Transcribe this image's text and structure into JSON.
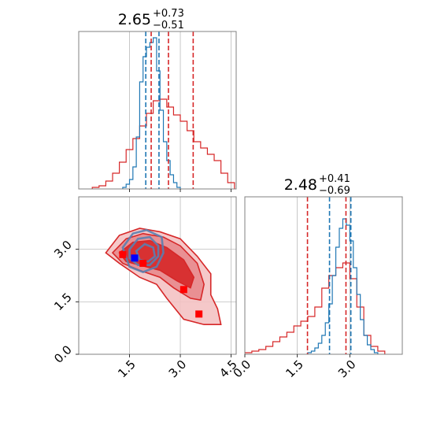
{
  "figure": {
    "type": "corner plot"
  },
  "colors": {
    "red": "#d62728",
    "red_fill": "#e8898d",
    "red_fill_light": "#f4c2c3",
    "blue": "#1f77b4",
    "blue_contour": "#5a7fb0",
    "marker_red": "#ff0000",
    "marker_blue": "#0000ff",
    "grid": "#b0b0b0",
    "axes": "#808080"
  },
  "chart_data": [
    {
      "panel": "top-left histogram",
      "type": "step-histogram",
      "title": {
        "value": "2.65",
        "plus": "+0.73",
        "minus": "−0.51"
      },
      "xlim": [
        0,
        4.65
      ],
      "x_ticks": [
        1.5,
        3.0,
        4.5
      ],
      "grid": true,
      "series": [
        {
          "color": "#d62728",
          "bin_edges": [
            0.4,
            0.6,
            0.8,
            1.0,
            1.2,
            1.4,
            1.6,
            1.8,
            2.0,
            2.2,
            2.4,
            2.6,
            2.8,
            3.0,
            3.2,
            3.4,
            3.6,
            3.8,
            4.0,
            4.2,
            4.4,
            4.6
          ],
          "counts": [
            0.01,
            0.02,
            0.05,
            0.1,
            0.17,
            0.25,
            0.32,
            0.4,
            0.48,
            0.56,
            0.57,
            0.52,
            0.47,
            0.43,
            0.37,
            0.3,
            0.26,
            0.22,
            0.18,
            0.1,
            0.04
          ],
          "quantile_lines": [
            2.14,
            2.65,
            3.38
          ]
        },
        {
          "color": "#1f77b4",
          "bin_edges": [
            1.3,
            1.4,
            1.5,
            1.6,
            1.7,
            1.8,
            1.9,
            2.0,
            2.1,
            2.2,
            2.3,
            2.4,
            2.5,
            2.6,
            2.7,
            2.8,
            2.9,
            3.0
          ],
          "counts": [
            0.01,
            0.03,
            0.06,
            0.14,
            0.33,
            0.68,
            0.84,
            0.9,
            0.93,
            0.96,
            0.75,
            0.5,
            0.3,
            0.18,
            0.09,
            0.04,
            0.01
          ],
          "quantile_lines": [
            1.98,
            2.37
          ]
        }
      ]
    },
    {
      "panel": "bottom-right histogram",
      "type": "step-histogram",
      "title": {
        "value": "2.48",
        "plus": "+0.41",
        "minus": "−0.69"
      },
      "xlim": [
        0,
        4.5
      ],
      "x_ticks": [
        0.0,
        1.5,
        3.0
      ],
      "x_tick_labels": [
        "0.0",
        "1.5",
        "3.0"
      ],
      "grid": true,
      "series": [
        {
          "color": "#d62728",
          "bin_edges": [
            0.0,
            0.2,
            0.4,
            0.6,
            0.8,
            1.0,
            1.2,
            1.4,
            1.6,
            1.8,
            2.0,
            2.2,
            2.4,
            2.6,
            2.8,
            3.0,
            3.2,
            3.4,
            3.6,
            3.8,
            4.0
          ],
          "counts": [
            0.01,
            0.02,
            0.03,
            0.05,
            0.08,
            0.11,
            0.14,
            0.18,
            0.21,
            0.24,
            0.3,
            0.42,
            0.5,
            0.55,
            0.58,
            0.48,
            0.3,
            0.12,
            0.05,
            0.02
          ],
          "quantile_lines": [
            1.79,
            2.89
          ]
        },
        {
          "color": "#1f77b4",
          "bin_edges": [
            1.8,
            1.9,
            2.0,
            2.1,
            2.2,
            2.3,
            2.4,
            2.5,
            2.6,
            2.7,
            2.8,
            2.9,
            3.0,
            3.1,
            3.2,
            3.3,
            3.4,
            3.5,
            3.6,
            3.7,
            3.8
          ],
          "counts": [
            0.01,
            0.02,
            0.04,
            0.07,
            0.12,
            0.2,
            0.32,
            0.5,
            0.68,
            0.8,
            0.86,
            0.82,
            0.72,
            0.55,
            0.38,
            0.22,
            0.12,
            0.06,
            0.03,
            0.01
          ],
          "quantile_lines": [
            2.42,
            3.03
          ]
        }
      ]
    },
    {
      "panel": "bottom-left 2D density",
      "type": "contour",
      "xlim": [
        0,
        4.65
      ],
      "ylim": [
        0,
        4.5
      ],
      "x_ticks": [
        1.5,
        3.0,
        4.5
      ],
      "x_tick_labels": [
        "1.5",
        "3.0",
        "4.5"
      ],
      "y_ticks": [
        0.0,
        1.5,
        3.0
      ],
      "y_tick_labels": [
        "0.0",
        "1.5",
        "3.0"
      ],
      "grid": true,
      "red_contours": [
        {
          "level": "outer",
          "points": [
            [
              0.8,
              2.9
            ],
            [
              1.2,
              3.4
            ],
            [
              1.8,
              3.6
            ],
            [
              2.4,
              3.5
            ],
            [
              3.0,
              3.3
            ],
            [
              3.5,
              2.8
            ],
            [
              3.9,
              2.3
            ],
            [
              3.9,
              1.7
            ],
            [
              4.1,
              1.3
            ],
            [
              4.2,
              0.85
            ],
            [
              3.7,
              0.85
            ],
            [
              3.1,
              1.0
            ],
            [
              2.6,
              1.6
            ],
            [
              2.3,
              2.0
            ],
            [
              1.8,
              2.2
            ],
            [
              1.2,
              2.6
            ]
          ],
          "fill": "#f4c2c3"
        },
        {
          "level": "middle",
          "points": [
            [
              1.0,
              2.9
            ],
            [
              1.4,
              3.3
            ],
            [
              1.9,
              3.45
            ],
            [
              2.5,
              3.35
            ],
            [
              3.0,
              3.1
            ],
            [
              3.5,
              2.6
            ],
            [
              3.7,
              2.0
            ],
            [
              3.6,
              1.55
            ],
            [
              3.3,
              1.6
            ],
            [
              2.8,
              1.9
            ],
            [
              2.4,
              2.2
            ],
            [
              1.8,
              2.4
            ],
            [
              1.3,
              2.6
            ]
          ],
          "fill": "#e8898d"
        },
        {
          "level": "inner",
          "points": [
            [
              1.2,
              2.9
            ],
            [
              1.6,
              3.2
            ],
            [
              2.1,
              3.25
            ],
            [
              2.6,
              3.05
            ],
            [
              3.1,
              2.7
            ],
            [
              3.4,
              2.2
            ],
            [
              3.3,
              1.9
            ],
            [
              2.9,
              2.1
            ],
            [
              2.4,
              2.4
            ],
            [
              1.8,
              2.55
            ],
            [
              1.4,
              2.65
            ]
          ],
          "fill": "#d62728"
        }
      ],
      "blue_contours": [
        {
          "level": "outer",
          "points": [
            [
              1.3,
              3.05
            ],
            [
              1.6,
              3.45
            ],
            [
              2.0,
              3.55
            ],
            [
              2.45,
              3.35
            ],
            [
              2.5,
              2.9
            ],
            [
              2.3,
              2.5
            ],
            [
              1.9,
              2.35
            ],
            [
              1.5,
              2.5
            ]
          ]
        },
        {
          "level": "middle",
          "points": [
            [
              1.5,
              3.0
            ],
            [
              1.75,
              3.3
            ],
            [
              2.1,
              3.35
            ],
            [
              2.35,
              3.1
            ],
            [
              2.35,
              2.8
            ],
            [
              2.1,
              2.55
            ],
            [
              1.75,
              2.55
            ],
            [
              1.5,
              2.75
            ]
          ]
        },
        {
          "level": "inner",
          "points": [
            [
              1.7,
              2.95
            ],
            [
              1.95,
              3.15
            ],
            [
              2.2,
              3.05
            ],
            [
              2.25,
              2.8
            ],
            [
              2.05,
              2.65
            ],
            [
              1.8,
              2.7
            ]
          ]
        }
      ],
      "red_markers": [
        [
          1.3,
          2.85
        ],
        [
          1.9,
          2.6
        ],
        [
          3.1,
          1.85
        ],
        [
          3.55,
          1.15
        ]
      ],
      "blue_markers": [
        [
          1.65,
          2.75
        ]
      ]
    }
  ]
}
